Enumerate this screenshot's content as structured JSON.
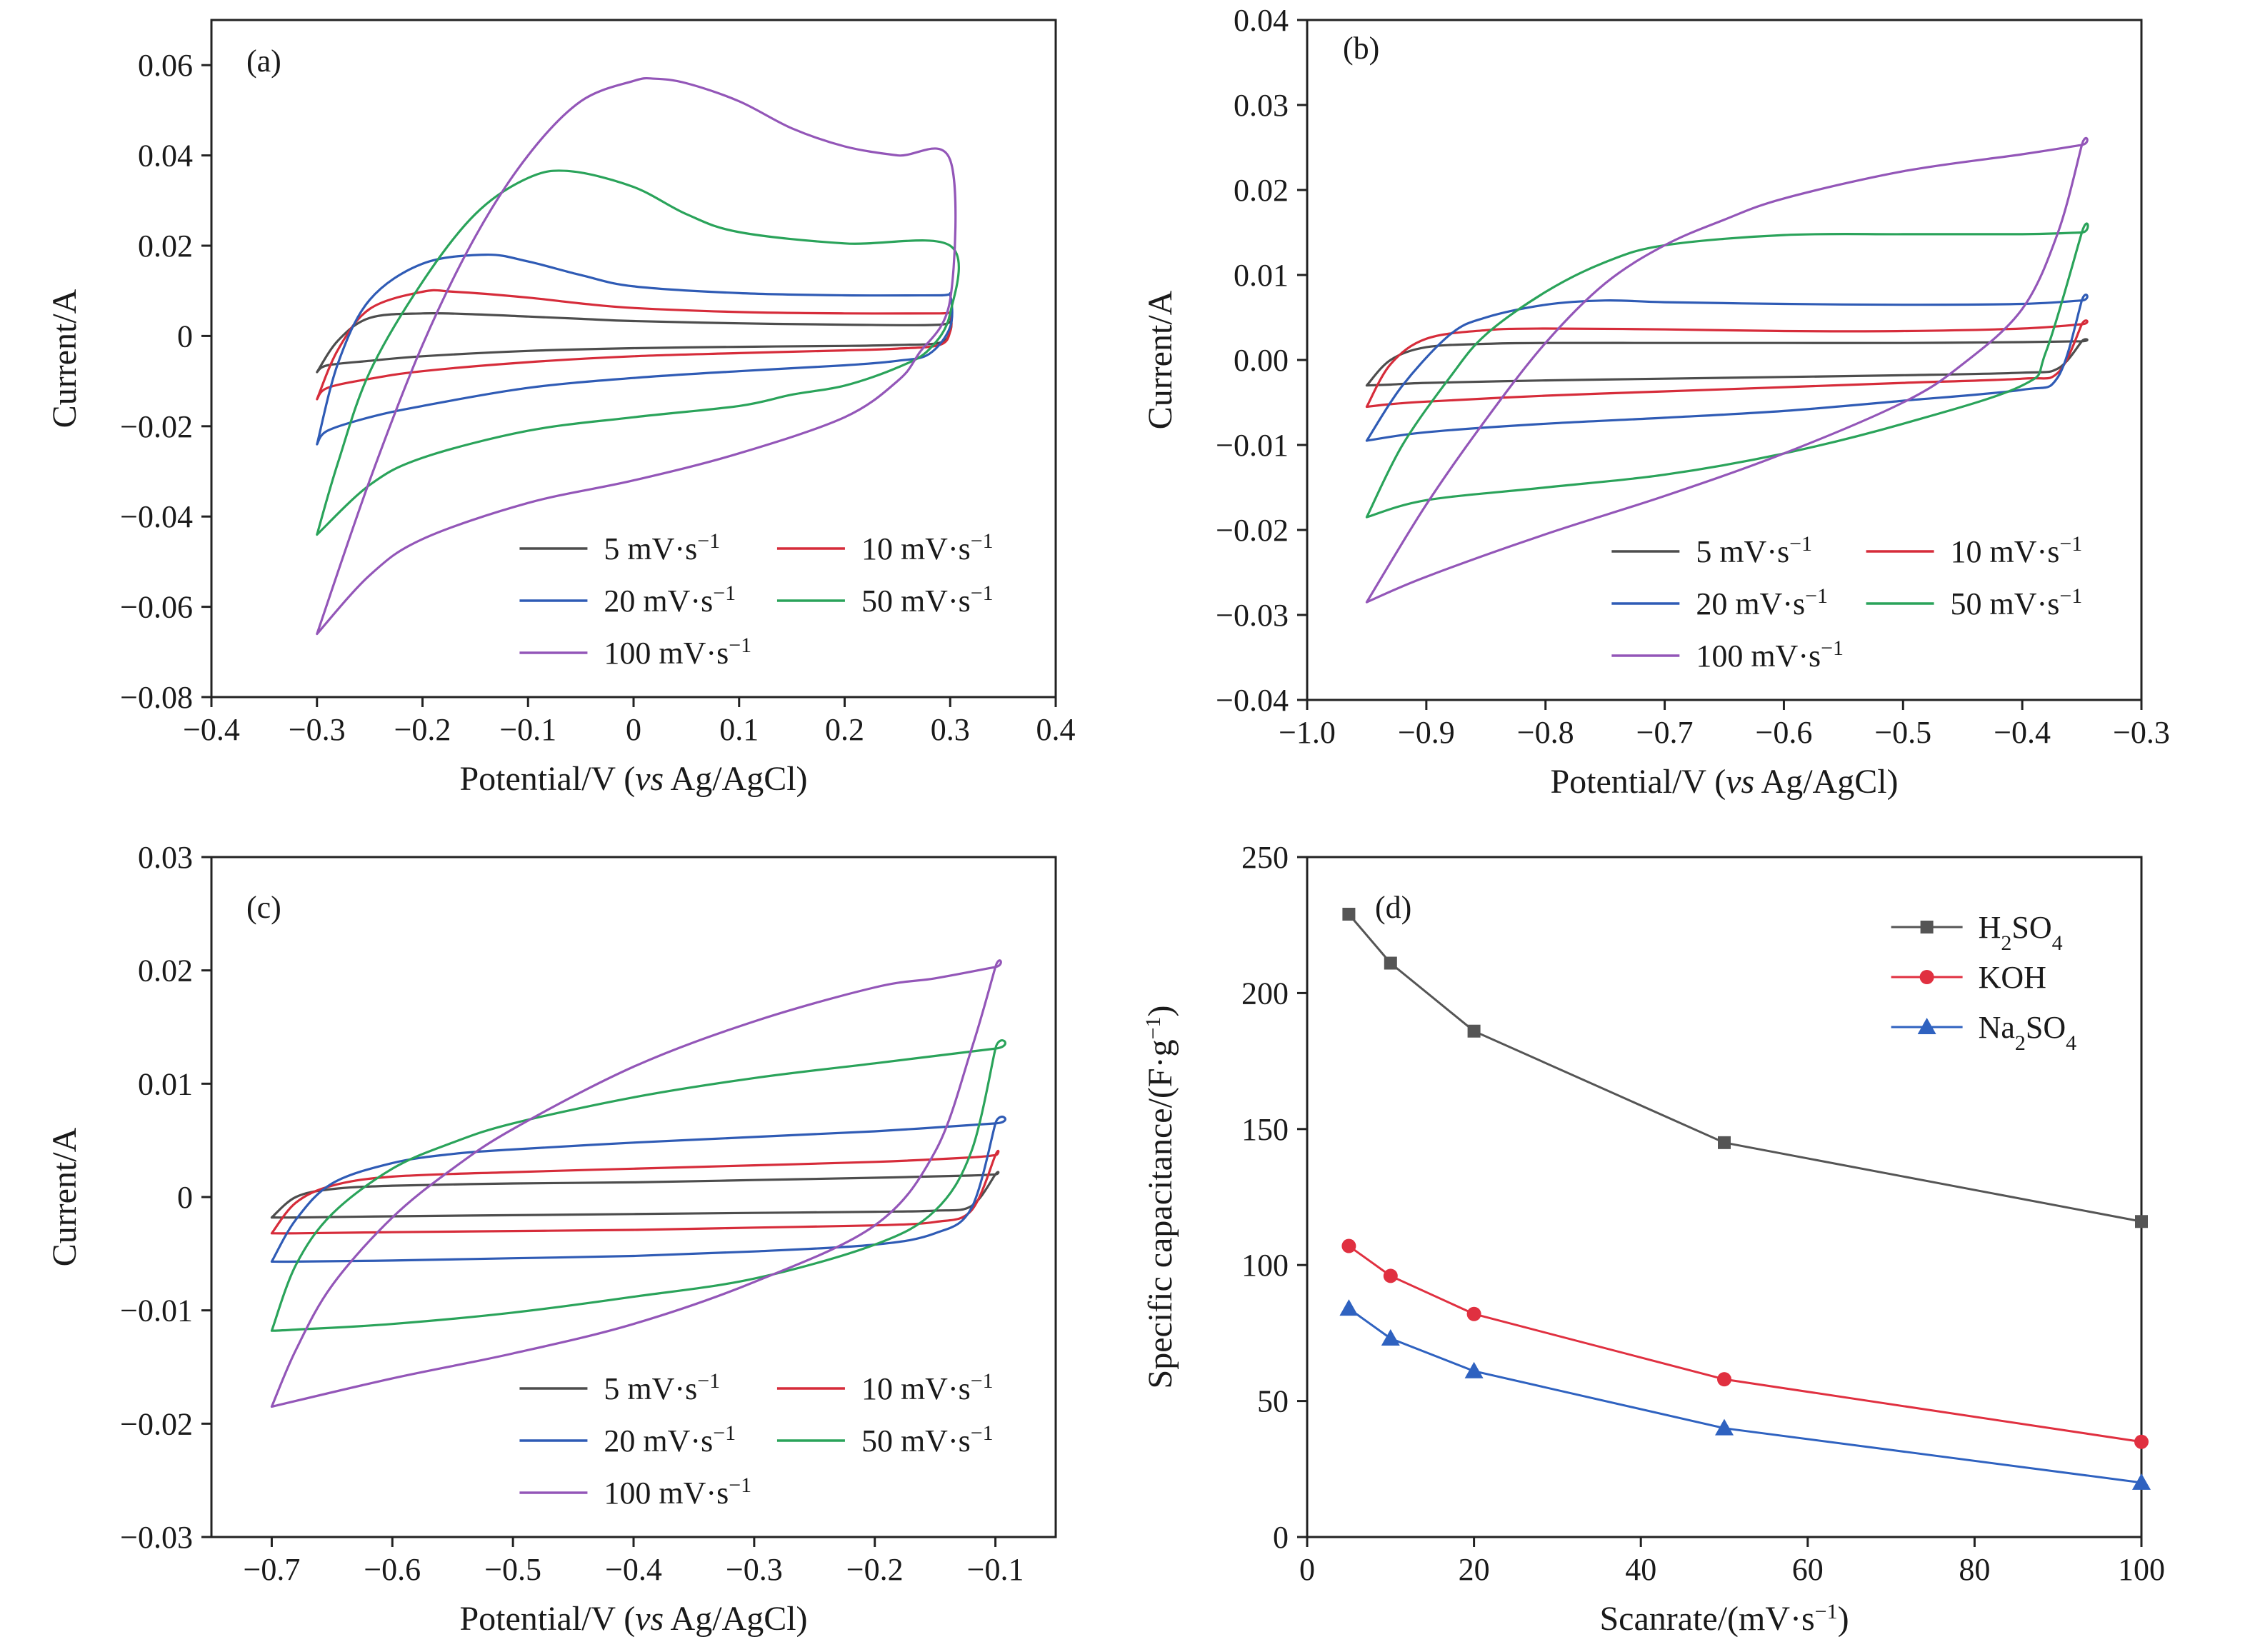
{
  "chart_data": [
    {
      "type": "line",
      "panel": "(a)",
      "xlabel": "Potential/V (vs Ag/AgCl)",
      "ylabel": "Current/A",
      "xlim": [
        -0.4,
        0.4
      ],
      "ylim": [
        -0.08,
        0.07
      ],
      "xticks": [
        -0.4,
        -0.3,
        -0.2,
        -0.1,
        0,
        0.1,
        0.2,
        0.3,
        0.4
      ],
      "xtick_labels": [
        "−0.4",
        "−0.3",
        "−0.2",
        "−0.1",
        "0",
        "0.1",
        "0.2",
        "0.3",
        "0.4"
      ],
      "yticks": [
        -0.08,
        -0.06,
        -0.04,
        -0.02,
        0,
        0.02,
        0.04,
        0.06
      ],
      "ytick_labels": [
        "−0.08",
        "−0.06",
        "−0.04",
        "−0.02",
        "0",
        "0.02",
        "0.04",
        "0.06"
      ],
      "legend": {
        "position": "bottom-right",
        "columns": 2
      },
      "series": [
        {
          "name": "5 mV·s",
          "unit_exp": "−1",
          "color": "#4d4d4d",
          "x": [
            -0.3,
            -0.28,
            -0.25,
            -0.2,
            -0.15,
            -0.1,
            -0.05,
            0,
            0.1,
            0.2,
            0.29,
            0.3,
            0.3,
            0.29,
            0.25,
            0.2,
            0.1,
            0,
            -0.1,
            -0.2,
            -0.25,
            -0.29,
            -0.3
          ],
          "y": [
            -0.008,
            -0.001,
            0.004,
            0.005,
            0.0048,
            0.0043,
            0.0038,
            0.0033,
            0.0028,
            0.0025,
            0.0025,
            0.004,
            0.001,
            -0.0015,
            -0.002,
            -0.0022,
            -0.0024,
            -0.0027,
            -0.0033,
            -0.0045,
            -0.0055,
            -0.0065,
            -0.008
          ]
        },
        {
          "name": "10 mV·s",
          "unit_exp": "−1",
          "color": "#d62c3a",
          "x": [
            -0.3,
            -0.28,
            -0.25,
            -0.2,
            -0.17,
            -0.1,
            -0.05,
            0,
            0.1,
            0.2,
            0.29,
            0.3,
            0.3,
            0.29,
            0.25,
            0.2,
            0.1,
            0,
            -0.1,
            -0.2,
            -0.25,
            -0.29,
            -0.3
          ],
          "y": [
            -0.014,
            -0.003,
            0.006,
            0.0098,
            0.0098,
            0.0085,
            0.0072,
            0.0062,
            0.0053,
            0.005,
            0.005,
            0.005,
            0.001,
            -0.002,
            -0.0028,
            -0.0032,
            -0.0038,
            -0.0045,
            -0.0058,
            -0.0078,
            -0.0095,
            -0.0115,
            -0.014
          ]
        },
        {
          "name": "20 mV·s",
          "unit_exp": "−1",
          "color": "#2f5bb5",
          "x": [
            -0.3,
            -0.28,
            -0.25,
            -0.2,
            -0.14,
            -0.1,
            -0.05,
            0,
            0.1,
            0.2,
            0.29,
            0.3,
            0.3,
            0.28,
            0.25,
            0.2,
            0.1,
            0,
            -0.1,
            -0.2,
            -0.25,
            -0.29,
            -0.3
          ],
          "y": [
            -0.024,
            -0.006,
            0.008,
            0.016,
            0.018,
            0.0165,
            0.0135,
            0.011,
            0.0095,
            0.009,
            0.009,
            0.009,
            0.002,
            -0.004,
            -0.0055,
            -0.0065,
            -0.0078,
            -0.0093,
            -0.0115,
            -0.0155,
            -0.018,
            -0.021,
            -0.024
          ]
        },
        {
          "name": "50 mV·s",
          "unit_exp": "−1",
          "color": "#2aa35a",
          "x": [
            -0.3,
            -0.28,
            -0.25,
            -0.2,
            -0.15,
            -0.1,
            -0.06,
            0,
            0.05,
            0.1,
            0.2,
            0.3,
            0.3,
            0.28,
            0.25,
            0.2,
            0.15,
            0.1,
            0,
            -0.1,
            -0.2,
            -0.25,
            -0.3
          ],
          "y": [
            -0.044,
            -0.028,
            -0.008,
            0.012,
            0.027,
            0.035,
            0.0365,
            0.033,
            0.027,
            0.023,
            0.0205,
            0.02,
            0.005,
            -0.003,
            -0.007,
            -0.011,
            -0.013,
            -0.0155,
            -0.018,
            -0.021,
            -0.027,
            -0.033,
            -0.044
          ]
        },
        {
          "name": "100 mV·s",
          "unit_exp": "−1",
          "color": "#9356b8",
          "x": [
            -0.3,
            -0.25,
            -0.2,
            -0.15,
            -0.1,
            -0.05,
            0,
            0.02,
            0.05,
            0.1,
            0.15,
            0.2,
            0.25,
            0.3,
            0.3,
            0.27,
            0.25,
            0.2,
            0.1,
            0,
            -0.1,
            -0.2,
            -0.25,
            -0.3
          ],
          "y": [
            -0.066,
            -0.032,
            -0.002,
            0.022,
            0.04,
            0.052,
            0.0565,
            0.057,
            0.056,
            0.052,
            0.046,
            0.042,
            0.04,
            0.039,
            0.008,
            -0.004,
            -0.01,
            -0.018,
            -0.026,
            -0.032,
            -0.037,
            -0.045,
            -0.053,
            -0.066
          ]
        }
      ]
    },
    {
      "type": "line",
      "panel": "(b)",
      "xlabel": "Potential/V (vs Ag/AgCl)",
      "ylabel": "Current/A",
      "xlim": [
        -1.0,
        -0.3
      ],
      "ylim": [
        -0.04,
        0.04
      ],
      "xticks": [
        -1.0,
        -0.9,
        -0.8,
        -0.7,
        -0.6,
        -0.5,
        -0.4,
        -0.3
      ],
      "xtick_labels": [
        "−1.0",
        "−0.9",
        "−0.8",
        "−0.7",
        "−0.6",
        "−0.5",
        "−0.4",
        "−0.3"
      ],
      "yticks": [
        -0.04,
        -0.03,
        -0.02,
        -0.01,
        0,
        0.01,
        0.02,
        0.03,
        0.04
      ],
      "ytick_labels": [
        "−0.04",
        "−0.03",
        "−0.02",
        "−0.01",
        "0.00",
        "0.01",
        "0.02",
        "0.03",
        "0.04"
      ],
      "legend": {
        "position": "bottom-right",
        "columns": 2
      },
      "series": [
        {
          "name": "5 mV·s",
          "unit_exp": "−1",
          "color": "#4d4d4d",
          "x": [
            -0.95,
            -0.93,
            -0.9,
            -0.85,
            -0.8,
            -0.7,
            -0.6,
            -0.5,
            -0.4,
            -0.35,
            -0.35,
            -0.37,
            -0.4,
            -0.5,
            -0.6,
            -0.7,
            -0.8,
            -0.9,
            -0.93,
            -0.95
          ],
          "y": [
            -0.003,
            0.0,
            0.0015,
            0.0019,
            0.002,
            0.002,
            0.002,
            0.002,
            0.0021,
            0.0022,
            0.0022,
            -0.001,
            -0.0015,
            -0.0018,
            -0.002,
            -0.0022,
            -0.0024,
            -0.0027,
            -0.0029,
            -0.003
          ]
        },
        {
          "name": "10 mV·s",
          "unit_exp": "−1",
          "color": "#d62c3a",
          "x": [
            -0.95,
            -0.93,
            -0.9,
            -0.85,
            -0.8,
            -0.7,
            -0.6,
            -0.5,
            -0.4,
            -0.35,
            -0.35,
            -0.37,
            -0.4,
            -0.5,
            -0.6,
            -0.7,
            -0.8,
            -0.9,
            -0.93,
            -0.95
          ],
          "y": [
            -0.0055,
            -0.0005,
            0.0025,
            0.0035,
            0.0037,
            0.0036,
            0.0034,
            0.0034,
            0.0037,
            0.0042,
            0.0042,
            -0.0015,
            -0.0022,
            -0.0027,
            -0.0032,
            -0.0037,
            -0.0042,
            -0.0049,
            -0.0052,
            -0.0055
          ]
        },
        {
          "name": "20 mV·s",
          "unit_exp": "−1",
          "color": "#2f5bb5",
          "x": [
            -0.95,
            -0.92,
            -0.88,
            -0.85,
            -0.8,
            -0.75,
            -0.7,
            -0.6,
            -0.5,
            -0.4,
            -0.35,
            -0.35,
            -0.37,
            -0.4,
            -0.5,
            -0.6,
            -0.7,
            -0.8,
            -0.9,
            -0.95
          ],
          "y": [
            -0.0095,
            -0.003,
            0.003,
            0.005,
            0.0065,
            0.007,
            0.0068,
            0.0066,
            0.0065,
            0.0066,
            0.007,
            0.007,
            -0.002,
            -0.0035,
            -0.0048,
            -0.006,
            -0.0068,
            -0.0075,
            -0.0085,
            -0.0095
          ]
        },
        {
          "name": "50 mV·s",
          "unit_exp": "−1",
          "color": "#2aa35a",
          "x": [
            -0.95,
            -0.92,
            -0.88,
            -0.85,
            -0.8,
            -0.75,
            -0.7,
            -0.6,
            -0.5,
            -0.4,
            -0.35,
            -0.35,
            -0.38,
            -0.4,
            -0.5,
            -0.6,
            -0.7,
            -0.8,
            -0.9,
            -0.95
          ],
          "y": [
            -0.0185,
            -0.01,
            -0.002,
            0.003,
            0.008,
            0.0115,
            0.0135,
            0.0147,
            0.0148,
            0.0148,
            0.015,
            0.015,
            0.001,
            -0.003,
            -0.0075,
            -0.011,
            -0.0135,
            -0.015,
            -0.0165,
            -0.0185
          ]
        },
        {
          "name": "100 mV·s",
          "unit_exp": "−1",
          "color": "#9356b8",
          "x": [
            -0.95,
            -0.9,
            -0.85,
            -0.8,
            -0.75,
            -0.7,
            -0.65,
            -0.6,
            -0.5,
            -0.4,
            -0.35,
            -0.35,
            -0.37,
            -0.4,
            -0.45,
            -0.5,
            -0.6,
            -0.7,
            -0.8,
            -0.9,
            -0.95
          ],
          "y": [
            -0.0285,
            -0.017,
            -0.007,
            0.002,
            0.009,
            0.0135,
            0.0165,
            0.019,
            0.0222,
            0.0242,
            0.0253,
            0.0253,
            0.015,
            0.006,
            -0.0005,
            -0.005,
            -0.011,
            -0.016,
            -0.0205,
            -0.0255,
            -0.0285
          ]
        }
      ]
    },
    {
      "type": "line",
      "panel": "(c)",
      "xlabel": "Potential/V (vs Ag/AgCl)",
      "ylabel": "Current/A",
      "xlim": [
        -0.75,
        -0.05
      ],
      "ylim": [
        -0.03,
        0.03
      ],
      "xticks": [
        -0.7,
        -0.6,
        -0.5,
        -0.4,
        -0.3,
        -0.2,
        -0.1
      ],
      "xtick_labels": [
        "−0.7",
        "−0.6",
        "−0.5",
        "−0.4",
        "−0.3",
        "−0.2",
        "−0.1"
      ],
      "yticks": [
        -0.03,
        -0.02,
        -0.01,
        0,
        0.01,
        0.02,
        0.03
      ],
      "ytick_labels": [
        "−0.03",
        "−0.02",
        "−0.01",
        "0",
        "0.01",
        "0.02",
        "0.03"
      ],
      "legend": {
        "position": "bottom-right",
        "columns": 2
      },
      "series": [
        {
          "name": "5 mV·s",
          "unit_exp": "−1",
          "color": "#4d4d4d",
          "x": [
            -0.7,
            -0.68,
            -0.65,
            -0.6,
            -0.5,
            -0.4,
            -0.3,
            -0.2,
            -0.12,
            -0.1,
            -0.1,
            -0.12,
            -0.15,
            -0.2,
            -0.3,
            -0.4,
            -0.5,
            -0.6,
            -0.68,
            -0.7
          ],
          "y": [
            -0.0018,
            0.0,
            0.0007,
            0.001,
            0.0012,
            0.0013,
            0.0015,
            0.0017,
            0.0019,
            0.002,
            0.002,
            -0.0008,
            -0.0012,
            -0.0013,
            -0.0014,
            -0.0015,
            -0.0016,
            -0.0017,
            -0.0018,
            -0.0018
          ]
        },
        {
          "name": "10 mV·s",
          "unit_exp": "−1",
          "color": "#d62c3a",
          "x": [
            -0.7,
            -0.68,
            -0.65,
            -0.6,
            -0.5,
            -0.4,
            -0.3,
            -0.2,
            -0.12,
            -0.1,
            -0.1,
            -0.12,
            -0.15,
            -0.2,
            -0.3,
            -0.4,
            -0.5,
            -0.6,
            -0.68,
            -0.7
          ],
          "y": [
            -0.0032,
            -0.0005,
            0.001,
            0.0018,
            0.0022,
            0.0025,
            0.0028,
            0.0031,
            0.0035,
            0.0037,
            0.0037,
            -0.0012,
            -0.0022,
            -0.0025,
            -0.0027,
            -0.0029,
            -0.003,
            -0.0031,
            -0.0032,
            -0.0032
          ]
        },
        {
          "name": "20 mV·s",
          "unit_exp": "−1",
          "color": "#2f5bb5",
          "x": [
            -0.7,
            -0.68,
            -0.65,
            -0.6,
            -0.55,
            -0.5,
            -0.4,
            -0.3,
            -0.2,
            -0.1,
            -0.1,
            -0.12,
            -0.15,
            -0.2,
            -0.3,
            -0.4,
            -0.5,
            -0.6,
            -0.68,
            -0.7
          ],
          "y": [
            -0.0057,
            -0.002,
            0.0012,
            0.003,
            0.0038,
            0.0042,
            0.0048,
            0.0053,
            0.0058,
            0.0065,
            0.0065,
            -0.001,
            -0.0032,
            -0.0042,
            -0.0048,
            -0.0052,
            -0.0054,
            -0.0056,
            -0.0057,
            -0.0057
          ]
        },
        {
          "name": "50 mV·s",
          "unit_exp": "−1",
          "color": "#2aa35a",
          "x": [
            -0.7,
            -0.68,
            -0.65,
            -0.6,
            -0.55,
            -0.5,
            -0.4,
            -0.3,
            -0.2,
            -0.1,
            -0.1,
            -0.12,
            -0.15,
            -0.2,
            -0.3,
            -0.4,
            -0.5,
            -0.6,
            -0.68,
            -0.7
          ],
          "y": [
            -0.0118,
            -0.006,
            -0.0015,
            0.0025,
            0.0048,
            0.0065,
            0.0088,
            0.0105,
            0.0118,
            0.0131,
            0.0131,
            0.004,
            -0.0012,
            -0.0042,
            -0.0072,
            -0.0088,
            -0.0102,
            -0.0112,
            -0.0117,
            -0.0118
          ]
        },
        {
          "name": "100 mV·s",
          "unit_exp": "−1",
          "color": "#9356b8",
          "x": [
            -0.7,
            -0.68,
            -0.65,
            -0.6,
            -0.55,
            -0.5,
            -0.4,
            -0.3,
            -0.2,
            -0.15,
            -0.1,
            -0.1,
            -0.12,
            -0.15,
            -0.2,
            -0.3,
            -0.4,
            -0.5,
            -0.6,
            -0.7
          ],
          "y": [
            -0.0185,
            -0.0135,
            -0.0078,
            -0.0018,
            0.0025,
            0.006,
            0.0115,
            0.0155,
            0.0185,
            0.0193,
            0.0203,
            0.0203,
            0.013,
            0.004,
            -0.0025,
            -0.0075,
            -0.0112,
            -0.0138,
            -0.016,
            -0.0185
          ]
        }
      ]
    },
    {
      "type": "line",
      "panel": "(d)",
      "xlabel": "Scanrate/(mV·s",
      "xlabel_exp": "−1",
      "xlabel_close": ")",
      "ylabel": "Specific capacitance/(F·g",
      "ylabel_exp": "−1",
      "ylabel_close": ")",
      "xlim": [
        0,
        100
      ],
      "ylim": [
        0,
        250
      ],
      "xticks": [
        0,
        20,
        40,
        60,
        80,
        100
      ],
      "xtick_labels": [
        "0",
        "20",
        "40",
        "60",
        "80",
        "100"
      ],
      "yticks": [
        0,
        50,
        100,
        150,
        200,
        250
      ],
      "ytick_labels": [
        "0",
        "50",
        "100",
        "150",
        "200",
        "250"
      ],
      "legend": {
        "position": "top-right",
        "columns": 1
      },
      "series": [
        {
          "name": "H2SO4",
          "name_parts": [
            "H",
            "2",
            "SO",
            "4"
          ],
          "marker": "square",
          "color": "#555555",
          "x": [
            5,
            10,
            20,
            50,
            100
          ],
          "y": [
            229,
            211,
            186,
            145,
            116
          ]
        },
        {
          "name": "KOH",
          "name_parts": [
            "KOH"
          ],
          "marker": "circle",
          "color": "#e03040",
          "x": [
            5,
            10,
            20,
            50,
            100
          ],
          "y": [
            107,
            96,
            82,
            58,
            35
          ]
        },
        {
          "name": "Na2SO4",
          "name_parts": [
            "Na",
            "2",
            "SO",
            "4"
          ],
          "marker": "triangle",
          "color": "#2f62c0",
          "x": [
            5,
            10,
            20,
            50,
            100
          ],
          "y": [
            84,
            73,
            61,
            40,
            20
          ]
        }
      ]
    }
  ]
}
